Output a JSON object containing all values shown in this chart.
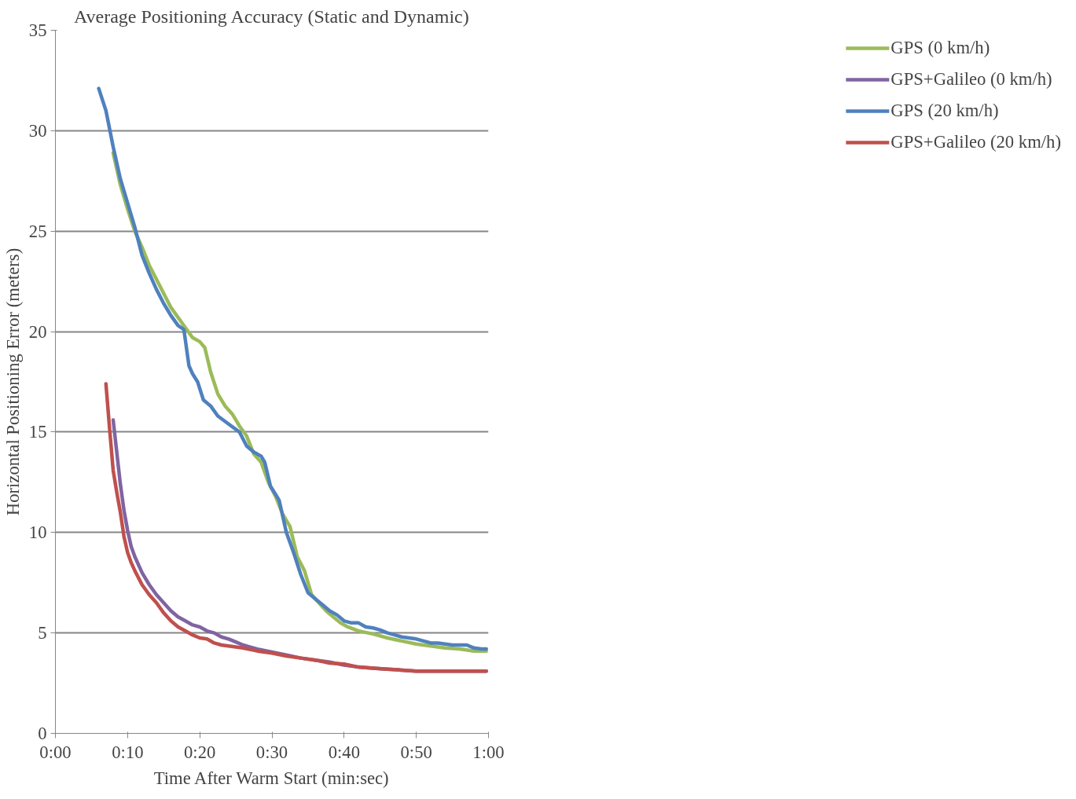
{
  "chart_data": {
    "type": "line",
    "title": "Average Positioning Accuracy (Static and Dynamic)",
    "xlabel": "Time After Warm Start (min:sec)",
    "ylabel": "Horizontal Positioning Error (meters)",
    "xlim": [
      0,
      60
    ],
    "xticks": [
      {
        "value": 0,
        "label": "0:00"
      },
      {
        "value": 10,
        "label": "0:10"
      },
      {
        "value": 20,
        "label": "0:20"
      },
      {
        "value": 30,
        "label": "0:30"
      },
      {
        "value": 40,
        "label": "0:40"
      },
      {
        "value": 50,
        "label": "0:50"
      },
      {
        "value": 60,
        "label": "1:00"
      }
    ],
    "ylim": [
      0,
      35
    ],
    "yticks": [
      0,
      5,
      10,
      15,
      20,
      25,
      30,
      35
    ],
    "grid": "y",
    "legend": "right",
    "marker": "none",
    "line_style": "solid",
    "series": [
      {
        "name": "GPS (0 km/h)",
        "color": "#9bbb59",
        "x": [
          8,
          9,
          10,
          11,
          12,
          13,
          14,
          15,
          16,
          17,
          18,
          19,
          20,
          20.7,
          21.5,
          22.5,
          23.5,
          24.5,
          25.5,
          26.5,
          27.5,
          28.5,
          29.5,
          30.5,
          31.5,
          32.5,
          33.5,
          34.5,
          35.5,
          36.5,
          37.5,
          38.5,
          39.5,
          40.5,
          42,
          44,
          46,
          48,
          50,
          52,
          54,
          56,
          58,
          59.7
        ],
        "values": [
          28.9,
          27.3,
          26.1,
          25.0,
          24.2,
          23.3,
          22.6,
          21.9,
          21.2,
          20.7,
          20.2,
          19.7,
          19.5,
          19.2,
          18.0,
          16.9,
          16.3,
          15.9,
          15.3,
          14.8,
          13.9,
          13.5,
          12.5,
          11.8,
          10.9,
          10.3,
          8.8,
          8.1,
          6.9,
          6.5,
          6.1,
          5.8,
          5.5,
          5.3,
          5.1,
          4.95,
          4.75,
          4.6,
          4.45,
          4.35,
          4.25,
          4.2,
          4.1,
          4.1
        ]
      },
      {
        "name": "GPS+Galileo (0 km/h)",
        "color": "#8064a2",
        "x": [
          8,
          8.5,
          9,
          9.5,
          10,
          10.5,
          11,
          12,
          13,
          14,
          15,
          16,
          17,
          18,
          19,
          20,
          21,
          22,
          23,
          24,
          25,
          26,
          27,
          28,
          30,
          32,
          34,
          36,
          38,
          40,
          42,
          44,
          46,
          48,
          50,
          55,
          59.7
        ],
        "values": [
          15.6,
          14.0,
          12.4,
          11.1,
          10.1,
          9.3,
          8.8,
          8.0,
          7.4,
          6.9,
          6.5,
          6.1,
          5.8,
          5.6,
          5.4,
          5.3,
          5.1,
          5.0,
          4.8,
          4.7,
          4.55,
          4.4,
          4.3,
          4.2,
          4.05,
          3.9,
          3.75,
          3.65,
          3.55,
          3.4,
          3.3,
          3.25,
          3.2,
          3.15,
          3.1,
          3.1,
          3.1
        ]
      },
      {
        "name": "GPS (20 km/h)",
        "color": "#4f81bd",
        "x": [
          6,
          7,
          8,
          9,
          10,
          11,
          12,
          13,
          14,
          15,
          16,
          17,
          17.8,
          18.5,
          19,
          19.7,
          20.5,
          21.5,
          22.5,
          24,
          25.5,
          26.5,
          27.5,
          28.5,
          29,
          29.8,
          30.5,
          31,
          32,
          33,
          34,
          35,
          36,
          37,
          38,
          39,
          40,
          41,
          42,
          43,
          44,
          45,
          46,
          47,
          48,
          49,
          50,
          51,
          52,
          53,
          54,
          55,
          56,
          57,
          58,
          59,
          59.7
        ],
        "values": [
          32.1,
          31.0,
          29.2,
          27.6,
          26.4,
          25.2,
          23.8,
          22.9,
          22.1,
          21.4,
          20.8,
          20.3,
          20.1,
          18.3,
          17.9,
          17.5,
          16.6,
          16.3,
          15.8,
          15.4,
          15.0,
          14.3,
          14.0,
          13.8,
          13.5,
          12.3,
          11.9,
          11.6,
          10.0,
          9.0,
          7.9,
          7.0,
          6.7,
          6.4,
          6.1,
          5.9,
          5.6,
          5.5,
          5.5,
          5.3,
          5.25,
          5.15,
          5.0,
          4.9,
          4.8,
          4.75,
          4.7,
          4.6,
          4.5,
          4.5,
          4.45,
          4.4,
          4.4,
          4.4,
          4.25,
          4.2,
          4.2
        ]
      },
      {
        "name": "GPS+Galileo (20 km/h)",
        "color": "#c0504d",
        "x": [
          7,
          7.5,
          8,
          8.5,
          9,
          9.5,
          10,
          10.5,
          11,
          12,
          13,
          14,
          15,
          16,
          17,
          18,
          19,
          20,
          21,
          22,
          23,
          24,
          26,
          28,
          30,
          32,
          34,
          36,
          38,
          40,
          42,
          44,
          46,
          48,
          50,
          55,
          59.7
        ],
        "values": [
          17.4,
          15.2,
          13.1,
          12.0,
          11.0,
          9.8,
          9.0,
          8.5,
          8.1,
          7.4,
          6.9,
          6.5,
          6.0,
          5.6,
          5.3,
          5.1,
          4.9,
          4.75,
          4.7,
          4.5,
          4.4,
          4.35,
          4.25,
          4.1,
          4.0,
          3.85,
          3.75,
          3.65,
          3.5,
          3.45,
          3.3,
          3.25,
          3.2,
          3.15,
          3.1,
          3.1,
          3.1
        ]
      }
    ]
  }
}
